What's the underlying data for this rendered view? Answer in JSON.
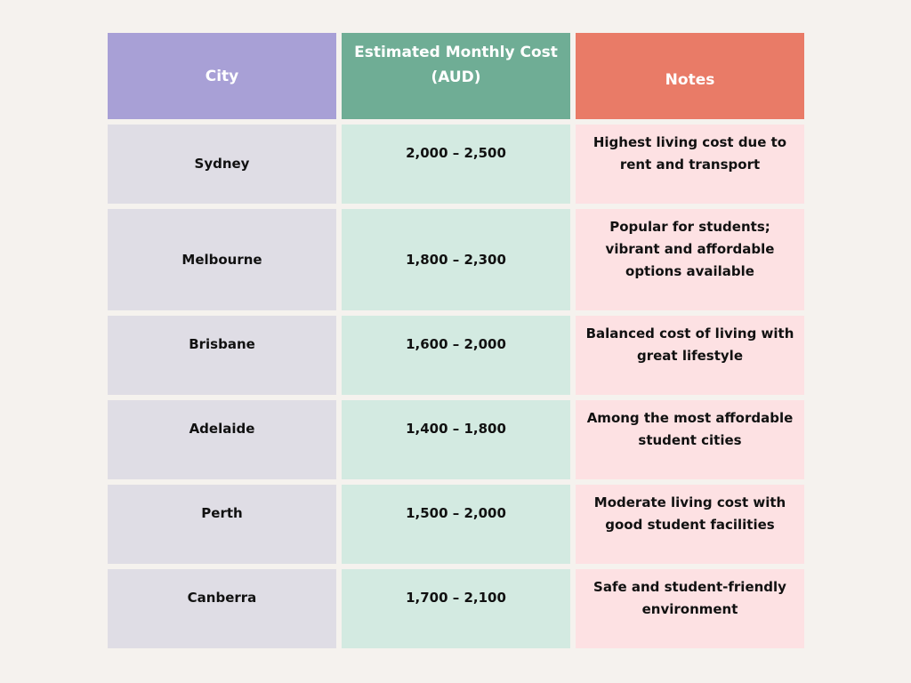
{
  "headers": {
    "city": "City",
    "cost": "Estimated Monthly Cost (AUD)",
    "notes": "Notes"
  },
  "rows": [
    {
      "city": "Sydney",
      "cost": "2,000 – 2,500",
      "notes": "Highest living cost due to rent and transport"
    },
    {
      "city": "Melbourne",
      "cost": "1,800 – 2,300",
      "notes": "Popular for students; vibrant and affordable options available"
    },
    {
      "city": "Brisbane",
      "cost": "1,600 – 2,000",
      "notes": "Balanced cost of living with great lifestyle"
    },
    {
      "city": "Adelaide",
      "cost": "1,400 – 1,800",
      "notes": "Among the most affordable student cities"
    },
    {
      "city": "Perth",
      "cost": "1,500 – 2,000",
      "notes": "Moderate living cost with good student facilities"
    },
    {
      "city": "Canberra",
      "cost": "1,700 – 2,100",
      "notes": "Safe and student-friendly environment"
    }
  ]
}
